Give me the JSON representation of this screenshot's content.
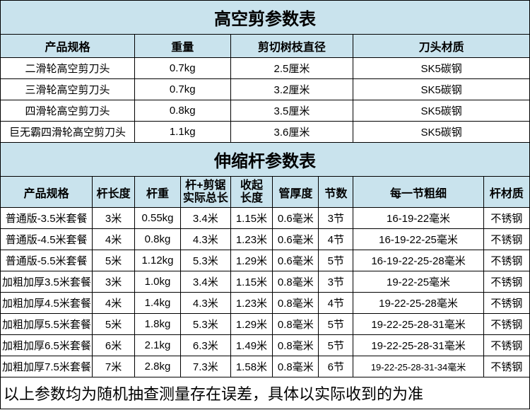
{
  "colors": {
    "header_bg": "#c9e3ed",
    "border": "#000000",
    "background": "#ffffff",
    "text": "#000000"
  },
  "table1": {
    "title": "高空剪参数表",
    "headers": [
      "产品规格",
      "重量",
      "剪切树枝直径",
      "刀头材质"
    ],
    "rows": [
      [
        "二滑轮高空剪刀头",
        "0.7kg",
        "2.5厘米",
        "SK5碳钢"
      ],
      [
        "三滑轮高空剪刀头",
        "0.7kg",
        "3.2厘米",
        "SK5碳钢"
      ],
      [
        "四滑轮高空剪刀头",
        "0.8kg",
        "3.5厘米",
        "SK5碳钢"
      ],
      [
        "巨无霸四滑轮高空剪刀头",
        "1.1kg",
        "3.6厘米",
        "SK5碳钢"
      ]
    ]
  },
  "table2": {
    "title": "伸缩杆参数表",
    "headers": [
      "产品规格",
      "杆长度",
      "杆重",
      "杆+剪锯\n实际总长",
      "收起\n长度",
      "管厚度",
      "节数",
      "每一节粗细",
      "杆材质"
    ],
    "rows": [
      [
        "普通版-3.5米套餐",
        "3米",
        "0.55kg",
        "3.4米",
        "1.15米",
        "0.6毫米",
        "3节",
        "16-19-22毫米",
        "不锈钢"
      ],
      [
        "普通版-4.5米套餐",
        "4米",
        "0.8kg",
        "4.3米",
        "1.23米",
        "0.6毫米",
        "4节",
        "16-19-22-25毫米",
        "不锈钢"
      ],
      [
        "普通版-5.5米套餐",
        "5米",
        "1.12kg",
        "5.3米",
        "1.29米",
        "0.6毫米",
        "5节",
        "16-19-22-25-28毫米",
        "不锈钢"
      ],
      [
        "加粗加厚3.5米套餐",
        "3米",
        "1.0kg",
        "3.4米",
        "1.15米",
        "0.8毫米",
        "3节",
        "19-22-25毫米",
        "不锈钢"
      ],
      [
        "加粗加厚4.5米套餐",
        "4米",
        "1.4kg",
        "4.3米",
        "1.23米",
        "0.8毫米",
        "4节",
        "19-22-25-28毫米",
        "不锈钢"
      ],
      [
        "加粗加厚5.5米套餐",
        "5米",
        "1.8kg",
        "5.3米",
        "1.29米",
        "0.8毫米",
        "5节",
        "19-22-25-28-31毫米",
        "不锈钢"
      ],
      [
        "加粗加厚6.5米套餐",
        "6米",
        "2.1kg",
        "6.3米",
        "1.49米",
        "0.8毫米",
        "5节",
        "19-22-25-28-31毫米",
        "不锈钢"
      ],
      [
        "加粗加厚7.5米套餐",
        "7米",
        "2.8kg",
        "7.3米",
        "1.58米",
        "0.8毫米",
        "6节",
        "19-22-25-28-31-34毫米",
        "不锈钢"
      ]
    ]
  },
  "footer": "以上参数均为随机抽查测量存在误差，具体以实际收到的为准"
}
